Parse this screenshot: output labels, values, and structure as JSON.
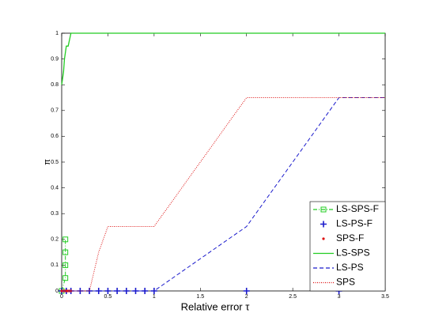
{
  "chart_data": {
    "type": "line",
    "xlabel": "Relative error τ",
    "ylabel": "π",
    "xlim": [
      0,
      3.5
    ],
    "ylim": [
      0,
      1
    ],
    "xticks": [
      0,
      0.5,
      1,
      1.5,
      2,
      2.5,
      3,
      3.5
    ],
    "yticks": [
      0,
      0.1,
      0.2,
      0.3,
      0.4,
      0.5,
      0.6,
      0.7,
      0.8,
      0.9,
      1
    ],
    "legend": "lower right",
    "series": [
      {
        "name": "LS-SPS-F",
        "color": "#22cc22",
        "line": "dashdot",
        "marker": "square",
        "x": [
          0,
          0.04,
          0.04,
          0.04,
          0.04
        ],
        "y": [
          0,
          0.05,
          0.1,
          0.15,
          0.2
        ]
      },
      {
        "name": "LS-PS-F",
        "color": "#1a1acc",
        "line": "none",
        "marker": "plus",
        "x": [
          0,
          0.05,
          0.1,
          0.2,
          0.3,
          0.4,
          0.5,
          0.6,
          0.7,
          0.8,
          0.9,
          1,
          2,
          3
        ],
        "y": [
          0,
          0,
          0,
          0,
          0,
          0,
          0,
          0,
          0,
          0,
          0,
          0,
          0,
          0
        ]
      },
      {
        "name": "SPS-F",
        "color": "#dd1111",
        "line": "none",
        "marker": "dot",
        "x": [
          0,
          0.02,
          0.04,
          0.06,
          0.08,
          0.1
        ],
        "y": [
          0,
          0,
          0,
          0,
          0,
          0
        ]
      },
      {
        "name": "LS-SPS",
        "color": "#22cc22",
        "line": "solid",
        "marker": "none",
        "x": [
          0,
          0.02,
          0.03,
          0.05,
          0.07,
          0.1,
          3.5
        ],
        "y": [
          0.8,
          0.85,
          0.9,
          0.95,
          0.95,
          1,
          1
        ]
      },
      {
        "name": "LS-PS",
        "color": "#1a1acc",
        "line": "dashed",
        "marker": "none",
        "x": [
          0,
          1,
          2,
          3,
          3.5
        ],
        "y": [
          0,
          0,
          0.25,
          0.75,
          0.75
        ]
      },
      {
        "name": "SPS",
        "color": "#dd1111",
        "line": "dotted",
        "marker": "none",
        "x": [
          0,
          0.3,
          0.4,
          0.5,
          1,
          2,
          3.5
        ],
        "y": [
          0,
          0,
          0.15,
          0.25,
          0.25,
          0.75,
          0.75
        ]
      }
    ]
  }
}
